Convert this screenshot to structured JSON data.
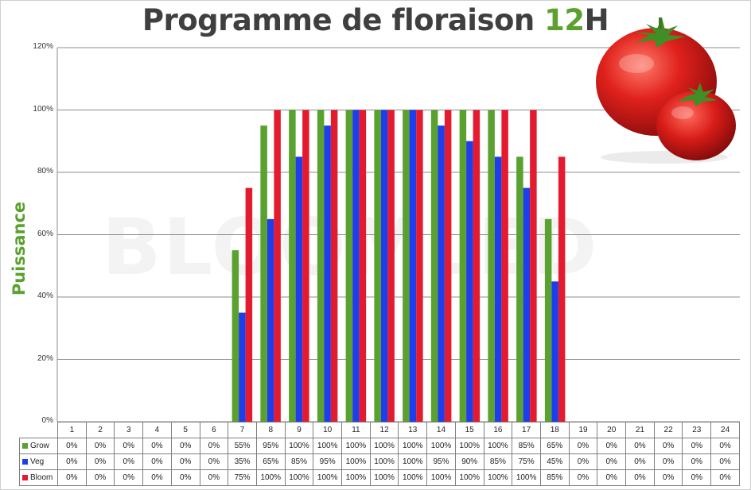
{
  "title_main": "Programme de floraison ",
  "title_accent": "12",
  "title_suffix": "H",
  "watermark": "BLOOMLED",
  "chart_data": {
    "type": "bar",
    "title": "Programme de floraison 12H",
    "xlabel": "",
    "ylabel": "Puissance",
    "ylim": [
      0,
      120
    ],
    "yticks": [
      "0%",
      "20%",
      "40%",
      "60%",
      "80%",
      "100%",
      "120%"
    ],
    "grid": true,
    "legend": "table-below",
    "categories": [
      "1",
      "2",
      "3",
      "4",
      "5",
      "6",
      "7",
      "8",
      "9",
      "10",
      "11",
      "12",
      "13",
      "14",
      "15",
      "16",
      "17",
      "18",
      "19",
      "20",
      "21",
      "22",
      "23",
      "24"
    ],
    "series": [
      {
        "name": "Grow",
        "color": "#5aa12f",
        "values": [
          0,
          0,
          0,
          0,
          0,
          0,
          55,
          95,
          100,
          100,
          100,
          100,
          100,
          100,
          100,
          100,
          85,
          65,
          0,
          0,
          0,
          0,
          0,
          0
        ]
      },
      {
        "name": "Veg",
        "color": "#1d3eea",
        "values": [
          0,
          0,
          0,
          0,
          0,
          0,
          35,
          65,
          85,
          95,
          100,
          100,
          100,
          95,
          90,
          85,
          75,
          45,
          0,
          0,
          0,
          0,
          0,
          0
        ]
      },
      {
        "name": "Bloom",
        "color": "#e41b2f",
        "values": [
          0,
          0,
          0,
          0,
          0,
          0,
          75,
          100,
          100,
          100,
          100,
          100,
          100,
          100,
          100,
          100,
          100,
          85,
          0,
          0,
          0,
          0,
          0,
          0
        ]
      }
    ]
  }
}
